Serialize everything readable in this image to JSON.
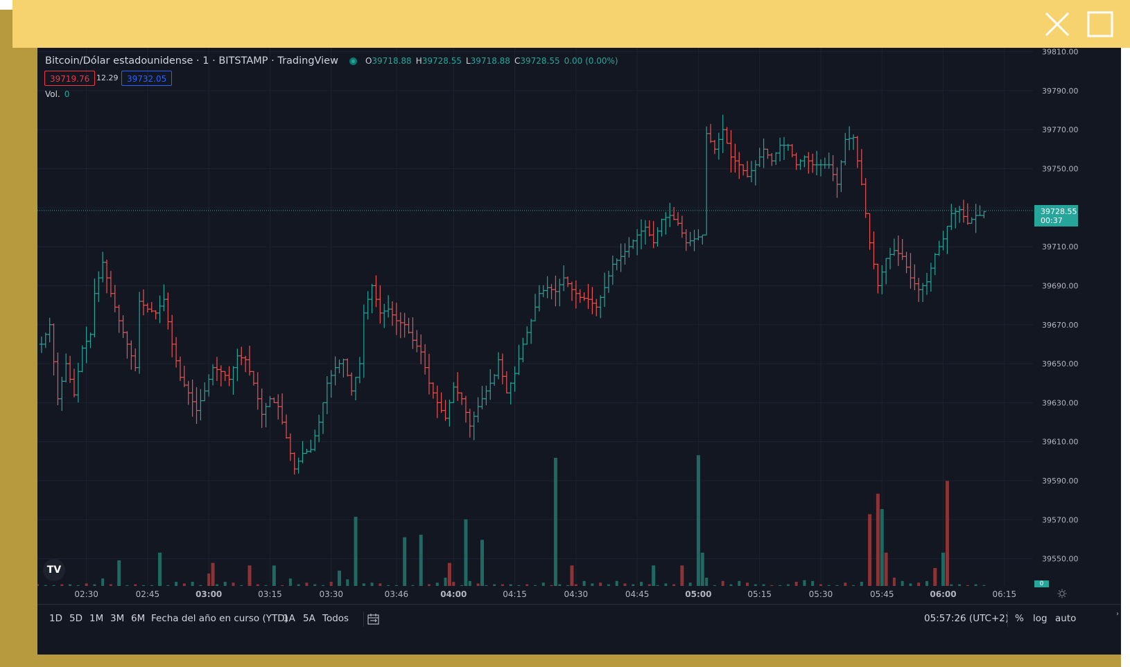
{
  "window": {
    "close_icon": "close-icon",
    "maximize_icon": "maximize-icon",
    "bar_color": "#f6d36e",
    "frame_color": "#b89a3e"
  },
  "legend": {
    "title": "Bitcoin/Dólar estadounidense · 1 · BITSTAMP · TradingView",
    "status_icon": "market-open-dot",
    "o_label": "O",
    "o_value": "39718.88",
    "h_label": "H",
    "h_value": "39728.55",
    "l_label": "L",
    "l_value": "39718.88",
    "c_label": "C",
    "c_value": "39728.55",
    "change": "0.00 (0.00%)",
    "bid": "39719.76",
    "spread": "12.29",
    "ask": "39732.05",
    "vol_label": "Vol.",
    "vol_value": "0"
  },
  "last_price": {
    "price": "39728.55",
    "countdown": "00:37"
  },
  "volume_tag": "0",
  "toolbar": {
    "ranges": [
      "1D",
      "5D",
      "1M",
      "3M",
      "6M",
      "Fecha del año en curso (YTD)",
      "1A",
      "5A",
      "Todos"
    ],
    "compare_icon": "calendar-range-icon",
    "clock": "05:57:26 (UTC+2)",
    "percent_label": "%",
    "log_label": "log",
    "auto_label": "auto",
    "settings_icon": "gear-icon",
    "logo_text": "TV"
  },
  "colors": {
    "background": "#131722",
    "grid": "#1e2230",
    "up": "#26a69a",
    "down": "#ef5350",
    "vol_up": "#1e6a63",
    "vol_down": "#8c3336",
    "axis_text": "#b2b5be"
  },
  "chart_data": {
    "type": "ohlc",
    "symbol": "Bitcoin/Dólar estadounidense",
    "interval": "1",
    "exchange": "BITSTAMP",
    "y_ticks": [
      39810,
      39790,
      39770,
      39750,
      39730,
      39710,
      39690,
      39670,
      39650,
      39630,
      39610,
      39590,
      39570,
      39550
    ],
    "ylim": [
      39536,
      39812
    ],
    "x_labels": [
      "02:30",
      "02:45",
      "03:00",
      "03:15",
      "03:30",
      "03:46",
      "04:00",
      "04:15",
      "04:30",
      "04:45",
      "05:00",
      "05:15",
      "05:30",
      "05:45",
      "06:00",
      "06:15"
    ],
    "bold_x_labels": [
      "03:00",
      "04:00",
      "05:00",
      "06:00"
    ],
    "x_range_minutes": [
      138,
      382
    ],
    "current_price": 39728.55,
    "keypoints": [
      [
        139,
        39660
      ],
      [
        141,
        39670
      ],
      [
        143,
        39632
      ],
      [
        145,
        39650
      ],
      [
        147,
        39634
      ],
      [
        149,
        39658
      ],
      [
        151,
        39665
      ],
      [
        152,
        39686
      ],
      [
        154,
        39702
      ],
      [
        156,
        39686
      ],
      [
        158,
        39672
      ],
      [
        160,
        39660
      ],
      [
        162,
        39648
      ],
      [
        163,
        39682
      ],
      [
        165,
        39678
      ],
      [
        167,
        39676
      ],
      [
        169,
        39683
      ],
      [
        171,
        39660
      ],
      [
        173,
        39643
      ],
      [
        175,
        39635
      ],
      [
        177,
        39626
      ],
      [
        179,
        39636
      ],
      [
        181,
        39648
      ],
      [
        183,
        39646
      ],
      [
        185,
        39642
      ],
      [
        187,
        39654
      ],
      [
        189,
        39652
      ],
      [
        191,
        39640
      ],
      [
        193,
        39624
      ],
      [
        195,
        39632
      ],
      [
        197,
        39628
      ],
      [
        199,
        39612
      ],
      [
        201,
        39596
      ],
      [
        203,
        39604
      ],
      [
        205,
        39606
      ],
      [
        207,
        39620
      ],
      [
        209,
        39640
      ],
      [
        211,
        39648
      ],
      [
        213,
        39652
      ],
      [
        215,
        39636
      ],
      [
        217,
        39650
      ],
      [
        218,
        39676
      ],
      [
        220,
        39690
      ],
      [
        222,
        39676
      ],
      [
        224,
        39678
      ],
      [
        226,
        39672
      ],
      [
        228,
        39670
      ],
      [
        230,
        39662
      ],
      [
        232,
        39656
      ],
      [
        234,
        39640
      ],
      [
        236,
        39630
      ],
      [
        238,
        39622
      ],
      [
        240,
        39638
      ],
      [
        242,
        39632
      ],
      [
        244,
        39618
      ],
      [
        246,
        39628
      ],
      [
        248,
        39636
      ],
      [
        250,
        39644
      ],
      [
        251,
        39652
      ],
      [
        253,
        39635
      ],
      [
        255,
        39645
      ],
      [
        257,
        39660
      ],
      [
        259,
        39672
      ],
      [
        261,
        39686
      ],
      [
        263,
        39689
      ],
      [
        265,
        39687
      ],
      [
        267,
        39694
      ],
      [
        269,
        39688
      ],
      [
        271,
        39684
      ],
      [
        273,
        39683
      ],
      [
        275,
        39679
      ],
      [
        277,
        39689
      ],
      [
        279,
        39701
      ],
      [
        281,
        39705
      ],
      [
        283,
        39710
      ],
      [
        285,
        39716
      ],
      [
        287,
        39720
      ],
      [
        289,
        39712
      ],
      [
        291,
        39724
      ],
      [
        293,
        39726
      ],
      [
        295,
        39722
      ],
      [
        297,
        39712
      ],
      [
        299,
        39714
      ],
      [
        301,
        39716
      ],
      [
        302,
        39768
      ],
      [
        304,
        39760
      ],
      [
        306,
        39770
      ],
      [
        308,
        39756
      ],
      [
        310,
        39752
      ],
      [
        312,
        39746
      ],
      [
        314,
        39752
      ],
      [
        316,
        39760
      ],
      [
        318,
        39754
      ],
      [
        320,
        39762
      ],
      [
        322,
        39762
      ],
      [
        324,
        39752
      ],
      [
        326,
        39756
      ],
      [
        328,
        39752
      ],
      [
        330,
        39752
      ],
      [
        332,
        39752
      ],
      [
        334,
        39742
      ],
      [
        336,
        39765
      ],
      [
        338,
        39766
      ],
      [
        340,
        39742
      ],
      [
        342,
        39712
      ],
      [
        344,
        39690
      ],
      [
        346,
        39704
      ],
      [
        348,
        39708
      ],
      [
        350,
        39705
      ],
      [
        352,
        39694
      ],
      [
        354,
        39688
      ],
      [
        356,
        39692
      ],
      [
        358,
        39706
      ],
      [
        360,
        39714
      ],
      [
        362,
        39727
      ],
      [
        364,
        39729
      ],
      [
        366,
        39722
      ],
      [
        368,
        39726
      ],
      [
        369,
        39726
      ],
      [
        370,
        39728
      ]
    ],
    "volume": [
      [
        138,
        2
      ],
      [
        140,
        1
      ],
      [
        142,
        1
      ],
      [
        144,
        2
      ],
      [
        146,
        2
      ],
      [
        148,
        1
      ],
      [
        150,
        3
      ],
      [
        152,
        2
      ],
      [
        154,
        9
      ],
      [
        156,
        2
      ],
      [
        158,
        22
      ],
      [
        160,
        1
      ],
      [
        162,
        2
      ],
      [
        164,
        1
      ],
      [
        166,
        1
      ],
      [
        168,
        2
      ],
      [
        170,
        1
      ],
      [
        172,
        5
      ],
      [
        174,
        3
      ],
      [
        176,
        5
      ],
      [
        178,
        1
      ],
      [
        180,
        15
      ],
      [
        182,
        2
      ],
      [
        184,
        5
      ],
      [
        186,
        4
      ],
      [
        188,
        1
      ],
      [
        190,
        2
      ],
      [
        192,
        2
      ],
      [
        194,
        1
      ],
      [
        196,
        4
      ],
      [
        198,
        1
      ],
      [
        200,
        9
      ],
      [
        202,
        2
      ],
      [
        204,
        4
      ],
      [
        206,
        2
      ],
      [
        208,
        1
      ],
      [
        210,
        5
      ],
      [
        212,
        1
      ],
      [
        214,
        8
      ],
      [
        216,
        1
      ],
      [
        218,
        3
      ],
      [
        220,
        4
      ],
      [
        222,
        3
      ],
      [
        224,
        1
      ],
      [
        226,
        1
      ],
      [
        228,
        2
      ],
      [
        230,
        1
      ],
      [
        232,
        12
      ],
      [
        234,
        2
      ],
      [
        236,
        4
      ],
      [
        238,
        10
      ],
      [
        240,
        5
      ],
      [
        242,
        1
      ],
      [
        244,
        6
      ],
      [
        246,
        3
      ],
      [
        248,
        1
      ],
      [
        250,
        2
      ],
      [
        252,
        2
      ],
      [
        254,
        2
      ],
      [
        256,
        1
      ],
      [
        258,
        2
      ],
      [
        260,
        1
      ],
      [
        262,
        4
      ],
      [
        264,
        1
      ],
      [
        266,
        2
      ],
      [
        268,
        1
      ],
      [
        270,
        2
      ],
      [
        272,
        6
      ],
      [
        274,
        3
      ],
      [
        276,
        4
      ],
      [
        278,
        2
      ],
      [
        280,
        6
      ],
      [
        282,
        3
      ],
      [
        284,
        2
      ],
      [
        286,
        5
      ],
      [
        288,
        2
      ],
      [
        290,
        1
      ],
      [
        292,
        3
      ],
      [
        294,
        2
      ],
      [
        296,
        4
      ],
      [
        298,
        4
      ],
      [
        300,
        4
      ],
      [
        302,
        10
      ],
      [
        304,
        1
      ],
      [
        306,
        6
      ],
      [
        308,
        2
      ],
      [
        310,
        6
      ],
      [
        312,
        4
      ],
      [
        314,
        2
      ],
      [
        316,
        2
      ],
      [
        318,
        1
      ],
      [
        320,
        1
      ],
      [
        322,
        2
      ],
      [
        324,
        5
      ],
      [
        326,
        7
      ],
      [
        328,
        6
      ],
      [
        330,
        2
      ],
      [
        332,
        1
      ],
      [
        334,
        1
      ],
      [
        336,
        4
      ],
      [
        338,
        1
      ],
      [
        340,
        5
      ],
      [
        342,
        7
      ],
      [
        344,
        9
      ],
      [
        346,
        12
      ],
      [
        348,
        10
      ],
      [
        350,
        6
      ],
      [
        352,
        3
      ],
      [
        354,
        4
      ],
      [
        356,
        6
      ],
      [
        358,
        5
      ],
      [
        360,
        6
      ],
      [
        362,
        2
      ],
      [
        364,
        2
      ],
      [
        366,
        1
      ],
      [
        368,
        2
      ],
      [
        370,
        1
      ]
    ],
    "volume_spikes": [
      [
        158,
        10,
        "up"
      ],
      [
        216,
        27,
        "up"
      ],
      [
        243,
        26,
        "up"
      ],
      [
        265,
        50,
        "up"
      ],
      [
        269,
        8,
        "down"
      ],
      [
        239,
        9,
        "down"
      ],
      [
        296,
        8,
        "down"
      ],
      [
        300,
        51,
        "up"
      ],
      [
        301,
        13,
        "up"
      ],
      [
        342,
        28,
        "down"
      ],
      [
        344,
        36,
        "down"
      ],
      [
        345,
        30,
        "up"
      ],
      [
        346,
        13,
        "down"
      ],
      [
        360,
        13,
        "up"
      ],
      [
        361,
        41,
        "down"
      ],
      [
        168,
        13,
        "up"
      ],
      [
        181,
        9,
        "down"
      ],
      [
        196,
        8,
        "up"
      ],
      [
        190,
        8,
        "down"
      ],
      [
        212,
        6,
        "up"
      ],
      [
        228,
        19,
        "up"
      ],
      [
        232,
        20,
        "up"
      ],
      [
        247,
        18,
        "up"
      ],
      [
        289,
        8,
        "up"
      ],
      [
        358,
        7,
        "down"
      ]
    ]
  }
}
